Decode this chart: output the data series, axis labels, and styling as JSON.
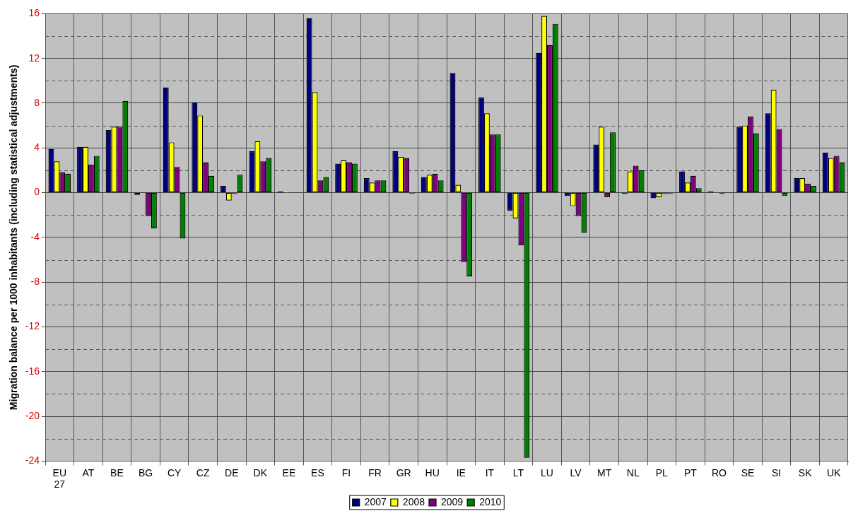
{
  "chart_data": {
    "type": "bar",
    "ylabel": "Migration balance per 1000 inhabitants (including statistical adjustments)",
    "categories": [
      "EU 27",
      "AT",
      "BE",
      "BG",
      "CY",
      "CZ",
      "DE",
      "DK",
      "EE",
      "ES",
      "FI",
      "FR",
      "GR",
      "HU",
      "IE",
      "IT",
      "LT",
      "LU",
      "LV",
      "MT",
      "NL",
      "PL",
      "PT",
      "RO",
      "SE",
      "SI",
      "SK",
      "UK"
    ],
    "series": [
      {
        "name": "2007",
        "color": "#000080",
        "values": [
          3.9,
          4.1,
          5.6,
          -0.2,
          9.4,
          8.1,
          0.6,
          3.7,
          0.1,
          15.6,
          2.6,
          1.3,
          3.7,
          1.4,
          10.7,
          8.5,
          -1.6,
          12.5,
          -0.3,
          4.3,
          -0.1,
          -0.5,
          1.9,
          0.1,
          5.9,
          7.1,
          1.3,
          3.6
        ]
      },
      {
        "name": "2008",
        "color": "#ffff00",
        "values": [
          2.8,
          4.1,
          5.9,
          0,
          4.5,
          6.9,
          -0.7,
          4.6,
          0.1,
          9.0,
          2.9,
          0.9,
          3.2,
          1.6,
          0.7,
          7.1,
          -2.3,
          15.8,
          -1.2,
          5.9,
          1.9,
          -0.4,
          0.9,
          -0.1,
          6.0,
          9.2,
          1.3,
          3.1
        ]
      },
      {
        "name": "2009",
        "color": "#800080",
        "values": [
          1.8,
          2.5,
          5.9,
          -2.1,
          2.3,
          2.7,
          -0.1,
          2.8,
          0,
          1.1,
          2.7,
          1.1,
          3.1,
          1.7,
          -6.2,
          5.2,
          -4.7,
          13.2,
          -2.1,
          -0.4,
          2.4,
          -0.1,
          1.5,
          -0.1,
          6.8,
          5.7,
          0.8,
          3.3
        ]
      },
      {
        "name": "2010",
        "color": "#008000",
        "values": [
          1.7,
          3.3,
          8.2,
          -3.2,
          -4.1,
          1.5,
          1.6,
          3.1,
          0,
          1.4,
          2.6,
          1.1,
          -0.1,
          1.1,
          -7.5,
          5.2,
          -23.7,
          15.1,
          -3.6,
          5.4,
          2.0,
          -0.1,
          0.4,
          0,
          5.3,
          -0.3,
          0.6,
          2.7
        ]
      }
    ],
    "ylim": [
      -24,
      16
    ],
    "yticks": [
      -24,
      {
        "value": -22,
        "label": null
      },
      -20,
      {
        "value": -18,
        "label": null
      },
      -16,
      {
        "value": -14,
        "label": null
      },
      -12,
      {
        "value": -10,
        "label": null
      },
      -8,
      {
        "value": -6,
        "label": null
      },
      -4,
      {
        "value": -2,
        "label": null
      },
      0,
      {
        "value": 2,
        "label": null
      },
      4,
      {
        "value": 6,
        "label": null
      },
      8,
      {
        "value": 10,
        "label": null
      },
      12,
      {
        "value": 14,
        "label": null
      },
      16
    ],
    "grid": true,
    "legend": "bottom"
  }
}
